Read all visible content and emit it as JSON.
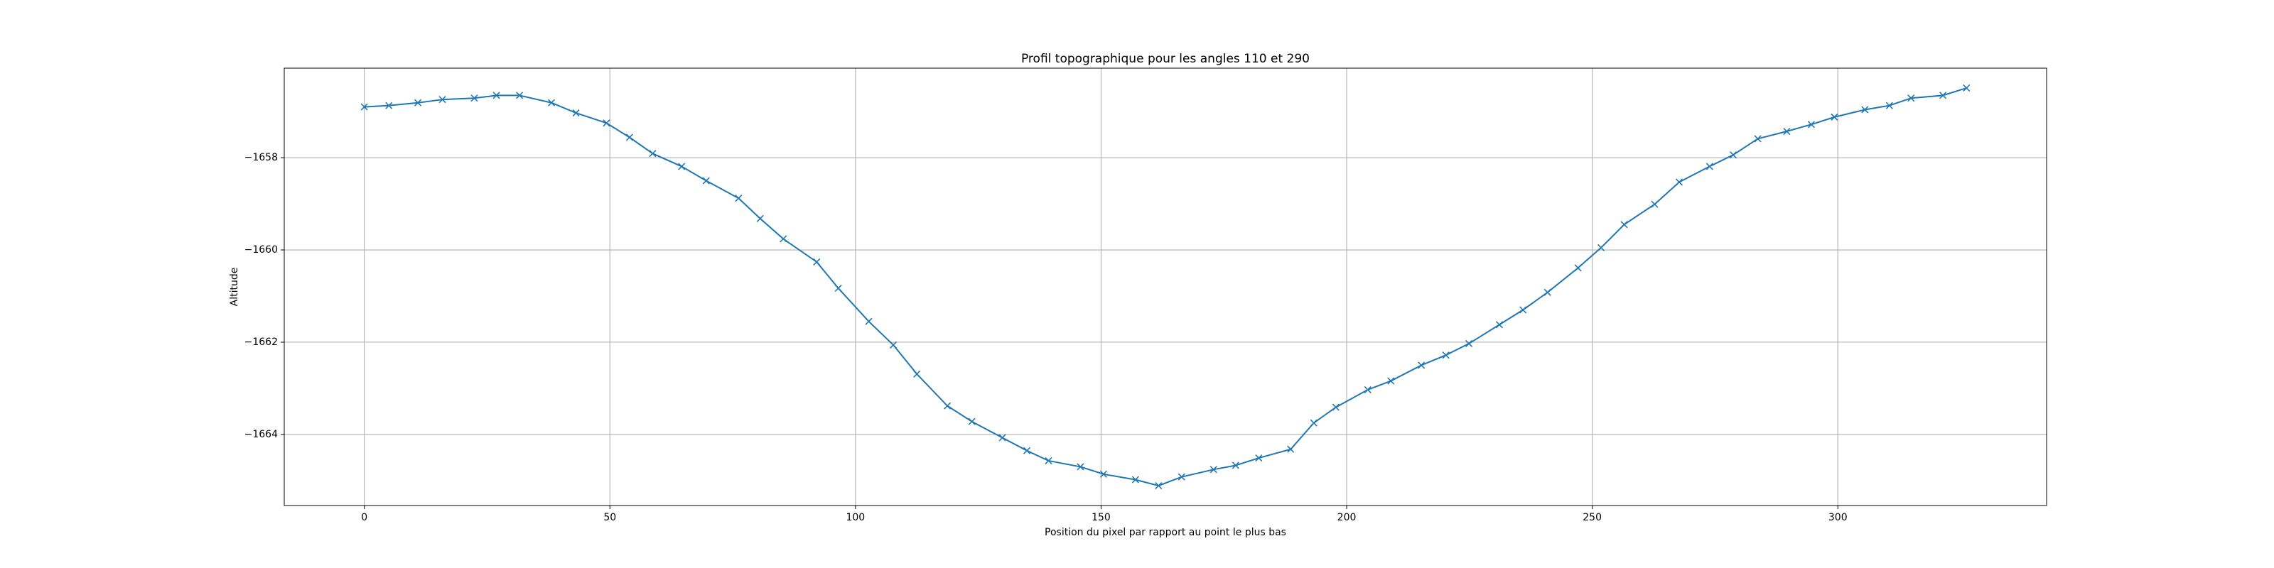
{
  "chart_data": {
    "type": "line",
    "title": "Profil topographique pour les angles 110 et 290",
    "xlabel": "Position du pixel par rapport au point le plus bas",
    "ylabel": "Altitude",
    "x": [
      0,
      5.0,
      10.9,
      15.9,
      22.4,
      26.9,
      31.6,
      38.1,
      43.1,
      49.3,
      54.0,
      58.7,
      64.6,
      69.6,
      76.2,
      80.6,
      85.3,
      92.1,
      96.5,
      102.7,
      107.7,
      112.5,
      118.7,
      123.7,
      129.9,
      134.9,
      139.3,
      145.8,
      150.5,
      157.0,
      161.7,
      166.4,
      172.9,
      177.4,
      182.1,
      188.6,
      193.3,
      197.8,
      204.3,
      209.0,
      215.2,
      220.2,
      224.9,
      231.1,
      235.9,
      240.9,
      247.1,
      251.8,
      256.5,
      262.7,
      267.7,
      273.9,
      278.7,
      283.7,
      289.6,
      294.6,
      299.3,
      305.5,
      310.5,
      314.9,
      321.4,
      326.2
    ],
    "series": [
      {
        "color": "#1f77b4",
        "marker": "x",
        "values": [
          -1656.9,
          -1656.87,
          -1656.81,
          -1656.74,
          -1656.71,
          -1656.65,
          -1656.65,
          -1656.81,
          -1657.03,
          -1657.25,
          -1657.56,
          -1657.91,
          -1658.19,
          -1658.5,
          -1658.88,
          -1659.32,
          -1659.76,
          -1660.26,
          -1660.83,
          -1661.55,
          -1662.06,
          -1662.69,
          -1663.38,
          -1663.72,
          -1664.07,
          -1664.35,
          -1664.57,
          -1664.7,
          -1664.86,
          -1664.98,
          -1665.11,
          -1664.92,
          -1664.76,
          -1664.67,
          -1664.51,
          -1664.32,
          -1663.75,
          -1663.41,
          -1663.03,
          -1662.84,
          -1662.5,
          -1662.28,
          -1662.03,
          -1661.62,
          -1661.3,
          -1660.92,
          -1660.39,
          -1659.95,
          -1659.45,
          -1659.01,
          -1658.53,
          -1658.19,
          -1657.94,
          -1657.59,
          -1657.43,
          -1657.28,
          -1657.12,
          -1656.96,
          -1656.87,
          -1656.71,
          -1656.65,
          -1656.49
        ]
      }
    ],
    "xlim": [
      -16.3,
      342.5
    ],
    "ylim": [
      -1665.54,
      -1656.06
    ],
    "xticks": [
      0,
      50,
      100,
      150,
      200,
      250,
      300
    ],
    "yticks": [
      {
        "value": -1664,
        "label": "−1664"
      },
      {
        "value": -1662,
        "label": "−1662"
      },
      {
        "value": -1660,
        "label": "−1660"
      },
      {
        "value": -1658,
        "label": "−1658"
      }
    ],
    "grid": true
  }
}
